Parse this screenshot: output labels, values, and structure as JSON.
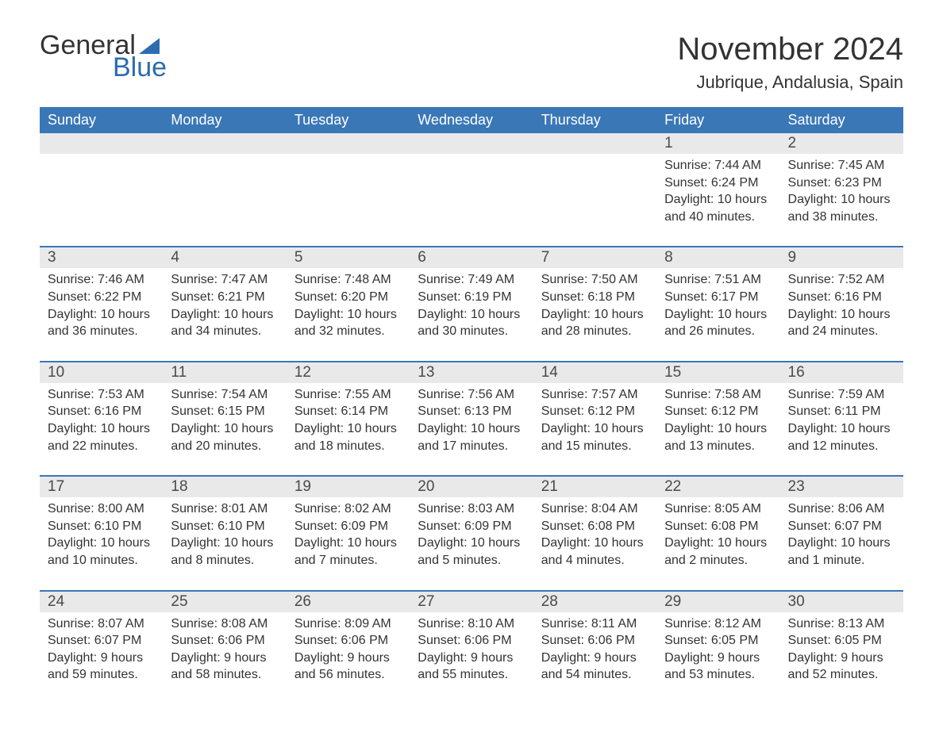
{
  "logo": {
    "word1": "General",
    "word2": "Blue"
  },
  "title": "November 2024",
  "location": "Jubrique, Andalusia, Spain",
  "colors": {
    "brand_blue": "#2c6cb0",
    "header_blue": "#3a77b7",
    "row_gray": "#e9e9e9",
    "text_dark": "#333333",
    "background": "#ffffff"
  },
  "typography": {
    "title_fontsize": 40,
    "location_fontsize": 22,
    "dayhead_fontsize": 18,
    "daynum_fontsize": 19,
    "detail_fontsize": 16,
    "font_family": "Arial"
  },
  "day_headers": [
    "Sunday",
    "Monday",
    "Tuesday",
    "Wednesday",
    "Thursday",
    "Friday",
    "Saturday"
  ],
  "weeks": [
    [
      null,
      null,
      null,
      null,
      null,
      {
        "n": "1",
        "sunrise": "7:44 AM",
        "sunset": "6:24 PM",
        "daylight": "10 hours and 40 minutes."
      },
      {
        "n": "2",
        "sunrise": "7:45 AM",
        "sunset": "6:23 PM",
        "daylight": "10 hours and 38 minutes."
      }
    ],
    [
      {
        "n": "3",
        "sunrise": "7:46 AM",
        "sunset": "6:22 PM",
        "daylight": "10 hours and 36 minutes."
      },
      {
        "n": "4",
        "sunrise": "7:47 AM",
        "sunset": "6:21 PM",
        "daylight": "10 hours and 34 minutes."
      },
      {
        "n": "5",
        "sunrise": "7:48 AM",
        "sunset": "6:20 PM",
        "daylight": "10 hours and 32 minutes."
      },
      {
        "n": "6",
        "sunrise": "7:49 AM",
        "sunset": "6:19 PM",
        "daylight": "10 hours and 30 minutes."
      },
      {
        "n": "7",
        "sunrise": "7:50 AM",
        "sunset": "6:18 PM",
        "daylight": "10 hours and 28 minutes."
      },
      {
        "n": "8",
        "sunrise": "7:51 AM",
        "sunset": "6:17 PM",
        "daylight": "10 hours and 26 minutes."
      },
      {
        "n": "9",
        "sunrise": "7:52 AM",
        "sunset": "6:16 PM",
        "daylight": "10 hours and 24 minutes."
      }
    ],
    [
      {
        "n": "10",
        "sunrise": "7:53 AM",
        "sunset": "6:16 PM",
        "daylight": "10 hours and 22 minutes."
      },
      {
        "n": "11",
        "sunrise": "7:54 AM",
        "sunset": "6:15 PM",
        "daylight": "10 hours and 20 minutes."
      },
      {
        "n": "12",
        "sunrise": "7:55 AM",
        "sunset": "6:14 PM",
        "daylight": "10 hours and 18 minutes."
      },
      {
        "n": "13",
        "sunrise": "7:56 AM",
        "sunset": "6:13 PM",
        "daylight": "10 hours and 17 minutes."
      },
      {
        "n": "14",
        "sunrise": "7:57 AM",
        "sunset": "6:12 PM",
        "daylight": "10 hours and 15 minutes."
      },
      {
        "n": "15",
        "sunrise": "7:58 AM",
        "sunset": "6:12 PM",
        "daylight": "10 hours and 13 minutes."
      },
      {
        "n": "16",
        "sunrise": "7:59 AM",
        "sunset": "6:11 PM",
        "daylight": "10 hours and 12 minutes."
      }
    ],
    [
      {
        "n": "17",
        "sunrise": "8:00 AM",
        "sunset": "6:10 PM",
        "daylight": "10 hours and 10 minutes."
      },
      {
        "n": "18",
        "sunrise": "8:01 AM",
        "sunset": "6:10 PM",
        "daylight": "10 hours and 8 minutes."
      },
      {
        "n": "19",
        "sunrise": "8:02 AM",
        "sunset": "6:09 PM",
        "daylight": "10 hours and 7 minutes."
      },
      {
        "n": "20",
        "sunrise": "8:03 AM",
        "sunset": "6:09 PM",
        "daylight": "10 hours and 5 minutes."
      },
      {
        "n": "21",
        "sunrise": "8:04 AM",
        "sunset": "6:08 PM",
        "daylight": "10 hours and 4 minutes."
      },
      {
        "n": "22",
        "sunrise": "8:05 AM",
        "sunset": "6:08 PM",
        "daylight": "10 hours and 2 minutes."
      },
      {
        "n": "23",
        "sunrise": "8:06 AM",
        "sunset": "6:07 PM",
        "daylight": "10 hours and 1 minute."
      }
    ],
    [
      {
        "n": "24",
        "sunrise": "8:07 AM",
        "sunset": "6:07 PM",
        "daylight": "9 hours and 59 minutes."
      },
      {
        "n": "25",
        "sunrise": "8:08 AM",
        "sunset": "6:06 PM",
        "daylight": "9 hours and 58 minutes."
      },
      {
        "n": "26",
        "sunrise": "8:09 AM",
        "sunset": "6:06 PM",
        "daylight": "9 hours and 56 minutes."
      },
      {
        "n": "27",
        "sunrise": "8:10 AM",
        "sunset": "6:06 PM",
        "daylight": "9 hours and 55 minutes."
      },
      {
        "n": "28",
        "sunrise": "8:11 AM",
        "sunset": "6:06 PM",
        "daylight": "9 hours and 54 minutes."
      },
      {
        "n": "29",
        "sunrise": "8:12 AM",
        "sunset": "6:05 PM",
        "daylight": "9 hours and 53 minutes."
      },
      {
        "n": "30",
        "sunrise": "8:13 AM",
        "sunset": "6:05 PM",
        "daylight": "9 hours and 52 minutes."
      }
    ]
  ],
  "labels": {
    "sunrise": "Sunrise: ",
    "sunset": "Sunset: ",
    "daylight": "Daylight: "
  }
}
